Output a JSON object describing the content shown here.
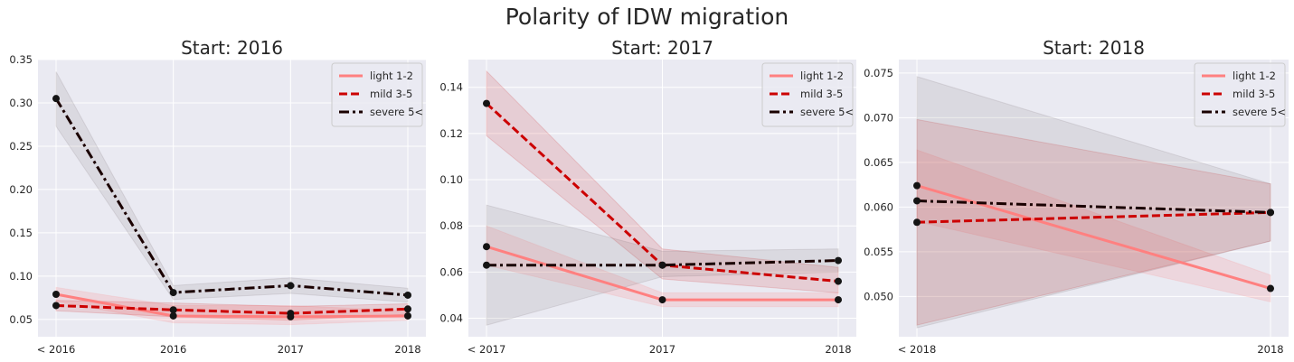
{
  "figure": {
    "title": "Polarity of IDW migration"
  },
  "colors": {
    "light": "#ff8080",
    "mild": "#cc0000",
    "severe": "#1a0000",
    "marker": "#141414",
    "panel_bg": "#eaeaf2",
    "grid": "#ffffff"
  },
  "legend": {
    "light": "light 1-2",
    "mild": "mild 3-5",
    "severe": "severe 5<"
  },
  "chart_data": [
    {
      "type": "line",
      "title": "Start: 2016",
      "categories": [
        "< 2016",
        "2016",
        "2017",
        "2018"
      ],
      "ylim": [
        0.03,
        0.35
      ],
      "yticks": [
        0.05,
        0.1,
        0.15,
        0.2,
        0.25,
        0.3,
        0.35
      ],
      "ytick_labels": [
        "0.05",
        "0.10",
        "0.15",
        "0.20",
        "0.25",
        "0.30",
        "0.35"
      ],
      "legend_position": "top-right",
      "grid": true,
      "series": [
        {
          "name": "light 1-2",
          "style": "solid",
          "values": [
            0.079,
            0.054,
            0.053,
            0.054
          ],
          "lower": [
            0.071,
            0.046,
            0.044,
            0.049
          ],
          "upper": [
            0.087,
            0.066,
            0.066,
            0.06
          ]
        },
        {
          "name": "mild 3-5",
          "style": "dashed",
          "values": [
            0.066,
            0.061,
            0.057,
            0.062
          ],
          "lower": [
            0.06,
            0.053,
            0.049,
            0.056
          ],
          "upper": [
            0.072,
            0.069,
            0.065,
            0.068
          ]
        },
        {
          "name": "severe 5<",
          "style": "dashdot",
          "values": [
            0.305,
            0.081,
            0.089,
            0.078
          ],
          "lower": [
            0.273,
            0.073,
            0.08,
            0.07
          ],
          "upper": [
            0.336,
            0.089,
            0.098,
            0.086
          ]
        }
      ]
    },
    {
      "type": "line",
      "title": "Start: 2017",
      "categories": [
        "< 2017",
        "2017",
        "2018"
      ],
      "ylim": [
        0.032,
        0.152
      ],
      "yticks": [
        0.04,
        0.06,
        0.08,
        0.1,
        0.12,
        0.14
      ],
      "ytick_labels": [
        "0.04",
        "0.06",
        "0.08",
        "0.10",
        "0.12",
        "0.14"
      ],
      "legend_position": "top-right",
      "grid": true,
      "series": [
        {
          "name": "light 1-2",
          "style": "solid",
          "values": [
            0.071,
            0.048,
            0.048
          ],
          "lower": [
            0.063,
            0.045,
            0.045
          ],
          "upper": [
            0.08,
            0.051,
            0.051
          ]
        },
        {
          "name": "mild 3-5",
          "style": "dashed",
          "values": [
            0.133,
            0.063,
            0.056
          ],
          "lower": [
            0.119,
            0.057,
            0.051
          ],
          "upper": [
            0.147,
            0.07,
            0.062
          ]
        },
        {
          "name": "severe 5<",
          "style": "dashdot",
          "values": [
            0.063,
            0.063,
            0.065
          ],
          "lower": [
            0.037,
            0.058,
            0.06
          ],
          "upper": [
            0.089,
            0.069,
            0.07
          ]
        }
      ]
    },
    {
      "type": "line",
      "title": "Start: 2018",
      "categories": [
        "< 2018",
        "2018"
      ],
      "ylim": [
        0.0455,
        0.0765
      ],
      "yticks": [
        0.05,
        0.055,
        0.06,
        0.065,
        0.07,
        0.075
      ],
      "ytick_labels": [
        "0.050",
        "0.055",
        "0.060",
        "0.065",
        "0.070",
        "0.075"
      ],
      "legend_position": "top-right",
      "grid": true,
      "series": [
        {
          "name": "light 1-2",
          "style": "solid",
          "values": [
            0.0624,
            0.0509
          ],
          "lower": [
            0.0584,
            0.0494
          ],
          "upper": [
            0.0664,
            0.0524
          ]
        },
        {
          "name": "mild 3-5",
          "style": "dashed",
          "values": [
            0.0583,
            0.0594
          ],
          "lower": [
            0.0468,
            0.0562
          ],
          "upper": [
            0.0698,
            0.0626
          ]
        },
        {
          "name": "severe 5<",
          "style": "dashdot",
          "values": [
            0.0607,
            0.0594
          ],
          "lower": [
            0.0465,
            0.0562
          ],
          "upper": [
            0.0746,
            0.0626
          ]
        }
      ]
    }
  ]
}
